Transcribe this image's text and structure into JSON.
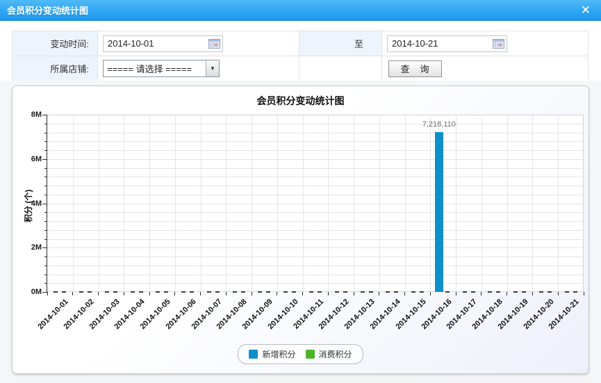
{
  "dialog": {
    "title": "会员积分变动统计图",
    "close_glyph": "✕",
    "accent_color": "#2fa6f3"
  },
  "form": {
    "time_label": "变动时间:",
    "from_value": "2014-10-01",
    "to_label": "至",
    "to_value": "2014-10-21",
    "shop_label": "所属店铺:",
    "shop_selected": "===== 请选择 =====",
    "search_button": "查　询"
  },
  "chart_data": {
    "type": "bar",
    "title": "会员积分变动统计图",
    "xlabel": "",
    "ylabel": "积分 (个)",
    "ylim": [
      0,
      8000000
    ],
    "y_minor_step": 400000,
    "yticks": [
      "0M",
      "2M",
      "4M",
      "6M",
      "8M"
    ],
    "grid": true,
    "legend_position": "bottom",
    "categories": [
      "2014-10-01",
      "2014-10-02",
      "2014-10-03",
      "2014-10-04",
      "2014-10-05",
      "2014-10-06",
      "2014-10-07",
      "2014-10-08",
      "2014-10-09",
      "2014-10-10",
      "2014-10-11",
      "2014-10-12",
      "2014-10-13",
      "2014-10-14",
      "2014-10-15",
      "2014-10-16",
      "2014-10-17",
      "2014-10-18",
      "2014-10-19",
      "2014-10-20",
      "2014-10-21"
    ],
    "series": [
      {
        "name": "新增积分",
        "color": "#0d8fc9",
        "values": [
          0,
          0,
          0,
          0,
          0,
          0,
          0,
          0,
          0,
          0,
          0,
          0,
          0,
          0,
          0,
          7218110,
          0,
          0,
          0,
          0,
          0
        ]
      },
      {
        "name": "消费积分",
        "color": "#4eb32b",
        "values": [
          0,
          0,
          0,
          0,
          0,
          0,
          0,
          0,
          0,
          0,
          0,
          0,
          0,
          0,
          0,
          0,
          0,
          0,
          0,
          0,
          0
        ]
      }
    ],
    "annotated_value_label": "7,218,110"
  }
}
